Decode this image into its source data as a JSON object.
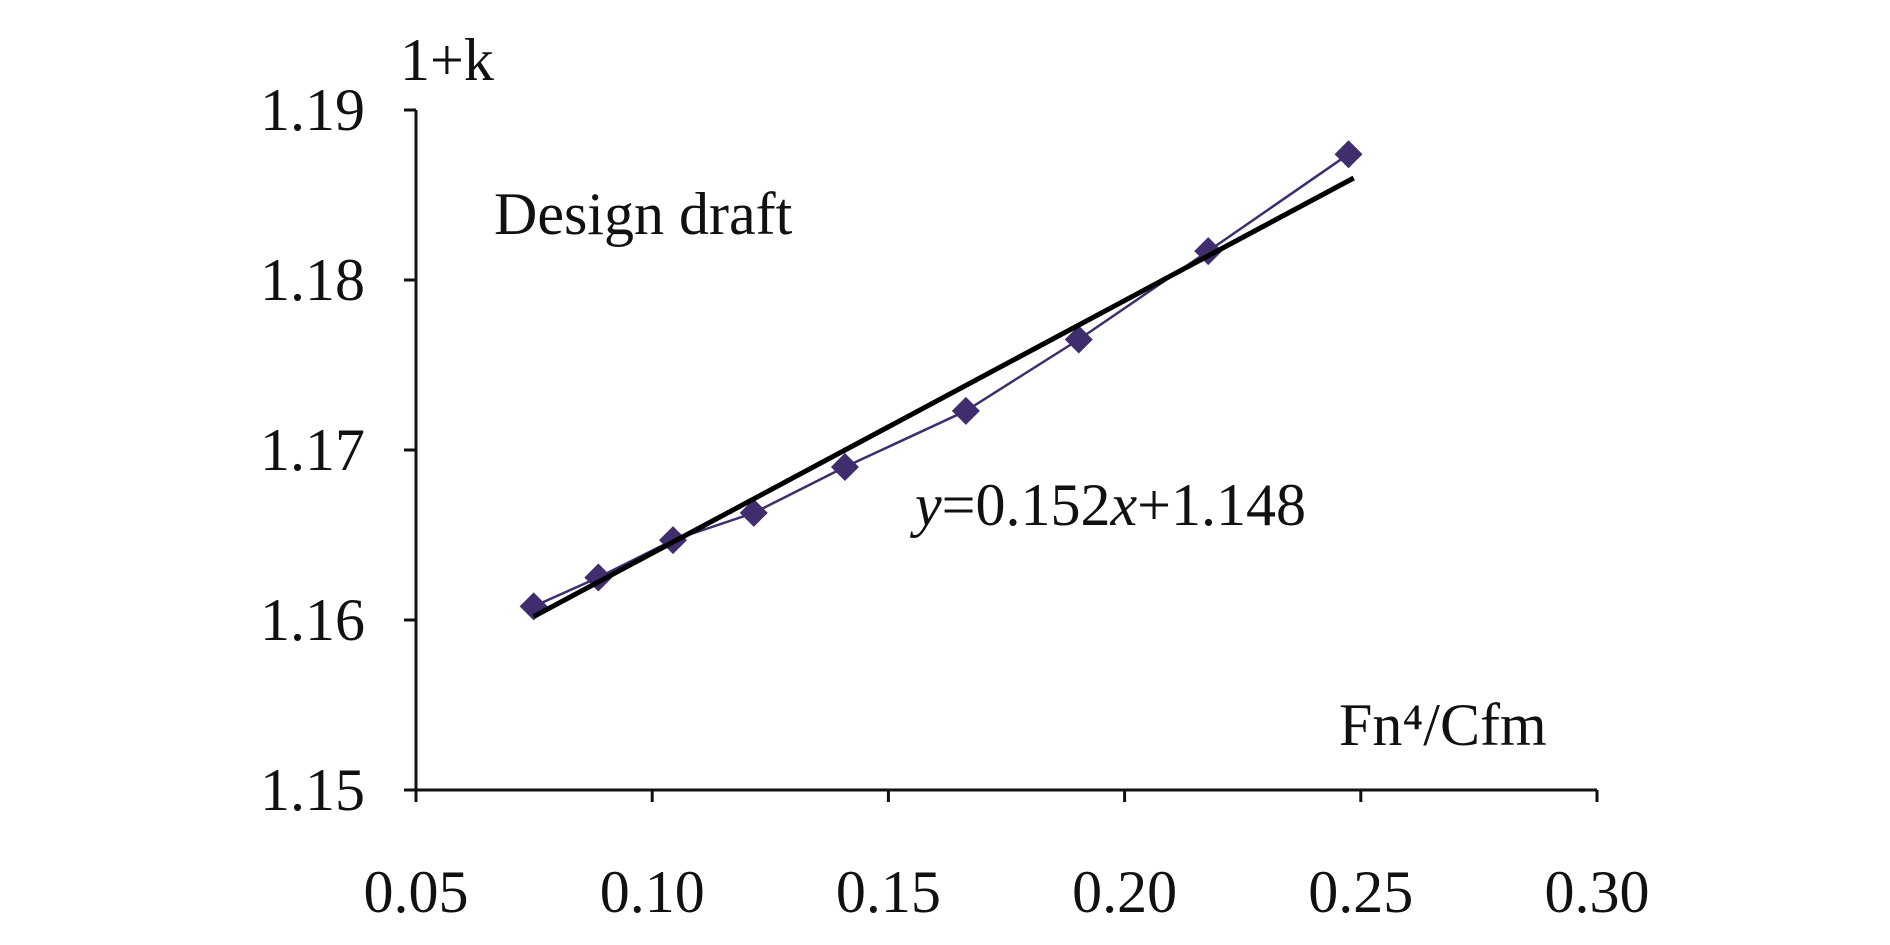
{
  "chart_data": {
    "type": "line",
    "y_label": "1+k",
    "x_label": "Fn⁴/Cfm",
    "annotation": "Design draft",
    "equation": [
      "y",
      "=0.152",
      "x",
      "+1.148"
    ],
    "xlim": [
      0.05,
      0.3
    ],
    "xticks": [
      0.05,
      {
        "value": 0.1,
        "label": "0.10"
      },
      0.15,
      {
        "value": 0.2,
        "label": "0.20"
      },
      0.25,
      {
        "value": 0.3,
        "label": "0.30"
      }
    ],
    "ylim": [
      1.15,
      1.19
    ],
    "yticks": [
      1.15,
      1.16,
      1.17,
      1.18,
      1.19
    ],
    "grid": false,
    "series": [
      {
        "color": "#3f2d6e",
        "marker": "diamond",
        "x": [
          0.0749,
          0.0886,
          0.1044,
          0.1215,
          0.1408,
          0.1664,
          0.1903,
          0.2177,
          0.2474
        ],
        "values": [
          1.1608,
          1.1625,
          1.1647,
          1.1663,
          1.169,
          1.1723,
          1.1765,
          1.1817,
          1.1874
        ]
      },
      {
        "color": "#000000",
        "marker": "none",
        "x": [
          0.0749,
          0.2485
        ],
        "values": [
          1.1602,
          1.186
        ]
      }
    ]
  }
}
